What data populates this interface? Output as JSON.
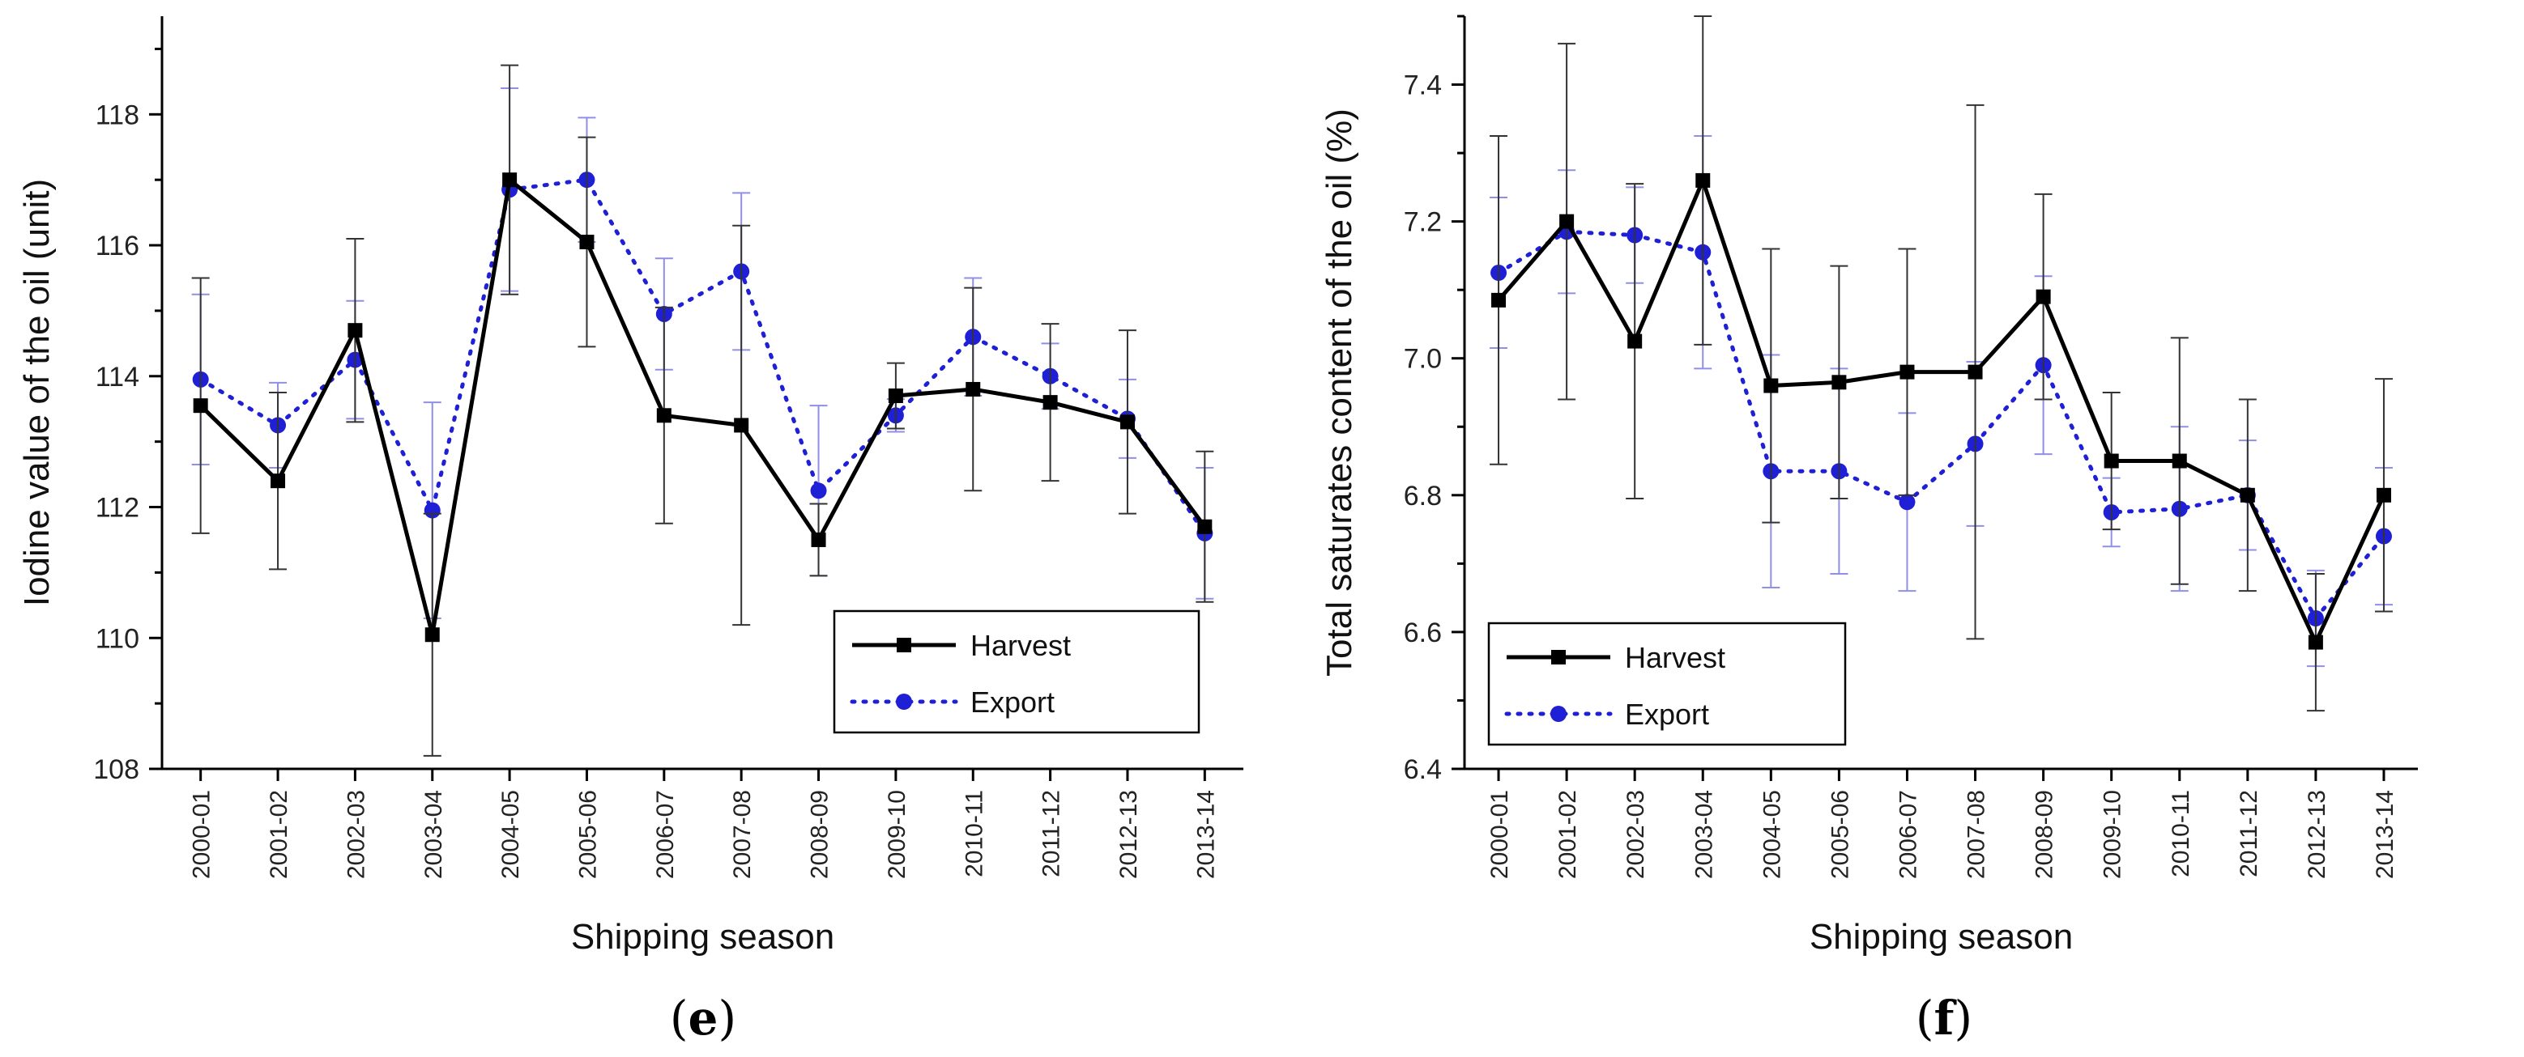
{
  "chart_data": [
    {
      "type": "line",
      "panel_label": "e",
      "xlabel": "Shipping season",
      "ylabel": "Iodine value of the oil (unit)",
      "ylim": [
        108,
        119.5
      ],
      "yticks": [
        108,
        110,
        112,
        114,
        116,
        118
      ],
      "categories": [
        "2000-01",
        "2001-02",
        "2002-03",
        "2003-04",
        "2004-05",
        "2005-06",
        "2006-07",
        "2007-08",
        "2008-09",
        "2009-10",
        "2010-11",
        "2011-12",
        "2012-13",
        "2013-14"
      ],
      "legend_position": "lower-right",
      "series": [
        {
          "name": "Harvest",
          "color": "#000000",
          "style": "solid-square",
          "values": [
            113.55,
            112.4,
            114.7,
            110.05,
            117.0,
            116.05,
            113.4,
            113.25,
            111.5,
            113.7,
            113.8,
            113.6,
            113.3,
            111.7
          ],
          "errors": [
            1.95,
            1.35,
            1.4,
            1.85,
            1.75,
            1.6,
            1.65,
            3.05,
            0.55,
            0.5,
            1.55,
            1.2,
            1.4,
            1.15
          ]
        },
        {
          "name": "Export",
          "color": "#1f1fd6",
          "style": "dotted-circle",
          "values": [
            113.95,
            113.25,
            114.25,
            111.95,
            116.85,
            117.0,
            114.95,
            115.6,
            112.25,
            113.4,
            114.6,
            114.0,
            113.35,
            111.6
          ],
          "errors": [
            1.3,
            0.65,
            0.9,
            1.65,
            1.55,
            0.95,
            0.85,
            1.2,
            1.3,
            0.25,
            0.9,
            0.5,
            0.6,
            1.0
          ]
        }
      ]
    },
    {
      "type": "line",
      "panel_label": "f",
      "xlabel": "Shipping season",
      "ylabel": "Total saturates content of the oil (%)",
      "ylim": [
        6.4,
        7.5
      ],
      "yticks": [
        6.4,
        6.6,
        6.8,
        7.0,
        7.2,
        7.4
      ],
      "categories": [
        "2000-01",
        "2001-02",
        "2002-03",
        "2003-04",
        "2004-05",
        "2005-06",
        "2006-07",
        "2007-08",
        "2008-09",
        "2009-10",
        "2010-11",
        "2011-12",
        "2012-13",
        "2013-14"
      ],
      "legend_position": "lower-left",
      "series": [
        {
          "name": "Harvest",
          "color": "#000000",
          "style": "solid-square",
          "values": [
            7.085,
            7.2,
            7.025,
            7.26,
            6.96,
            6.965,
            6.98,
            6.98,
            7.09,
            6.85,
            6.85,
            6.8,
            6.585,
            6.8
          ],
          "errors": [
            0.24,
            0.26,
            0.23,
            0.24,
            0.2,
            0.17,
            0.18,
            0.39,
            0.15,
            0.1,
            0.18,
            0.14,
            0.1,
            0.17
          ]
        },
        {
          "name": "Export",
          "color": "#1f1fd6",
          "style": "dotted-circle",
          "values": [
            7.125,
            7.185,
            7.18,
            7.155,
            6.835,
            6.835,
            6.79,
            6.875,
            6.99,
            6.775,
            6.78,
            6.8,
            6.62,
            6.74
          ],
          "errors": [
            0.11,
            0.09,
            0.07,
            0.17,
            0.17,
            0.15,
            0.13,
            0.12,
            0.13,
            0.05,
            0.12,
            0.08,
            0.07,
            0.1
          ]
        }
      ]
    }
  ]
}
